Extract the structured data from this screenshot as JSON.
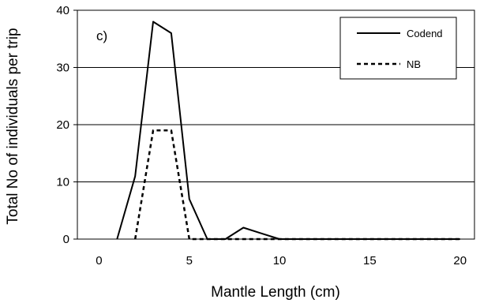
{
  "chart_data": {
    "type": "line",
    "panel_label": "c)",
    "xlabel": "Mantle Length  (cm)",
    "ylabel": "Total No of individuals per trip",
    "xlim": [
      -1.2,
      20.8
    ],
    "ylim": [
      0,
      40
    ],
    "xticks": [
      0,
      5,
      10,
      15,
      20
    ],
    "yticks": [
      0,
      10,
      20,
      30,
      40
    ],
    "grid": "horizontal",
    "legend_position": "top-right",
    "series": [
      {
        "name": "Codend",
        "style": "solid",
        "color": "#000000",
        "points": [
          [
            1,
            0
          ],
          [
            2,
            11
          ],
          [
            3,
            38
          ],
          [
            4,
            36
          ],
          [
            5,
            7
          ],
          [
            6,
            0
          ],
          [
            7,
            0
          ],
          [
            8,
            2
          ],
          [
            9,
            1
          ],
          [
            10,
            0
          ],
          [
            11,
            0
          ],
          [
            12,
            0
          ],
          [
            13,
            0
          ],
          [
            14,
            0
          ],
          [
            15,
            0
          ],
          [
            16,
            0
          ],
          [
            17,
            0
          ],
          [
            18,
            0
          ],
          [
            19,
            0
          ],
          [
            20,
            0
          ]
        ]
      },
      {
        "name": "NB",
        "style": "dashed",
        "color": "#000000",
        "points": [
          [
            2,
            0
          ],
          [
            3,
            19
          ],
          [
            4,
            19
          ],
          [
            5,
            0
          ],
          [
            6,
            0
          ],
          [
            7,
            0
          ],
          [
            8,
            0
          ],
          [
            9,
            0
          ],
          [
            10,
            0
          ],
          [
            11,
            0
          ],
          [
            12,
            0
          ],
          [
            13,
            0
          ],
          [
            14,
            0
          ],
          [
            15,
            0
          ],
          [
            16,
            0
          ],
          [
            17,
            0
          ],
          [
            18,
            0
          ],
          [
            19,
            0
          ],
          [
            20,
            0
          ]
        ]
      }
    ]
  }
}
